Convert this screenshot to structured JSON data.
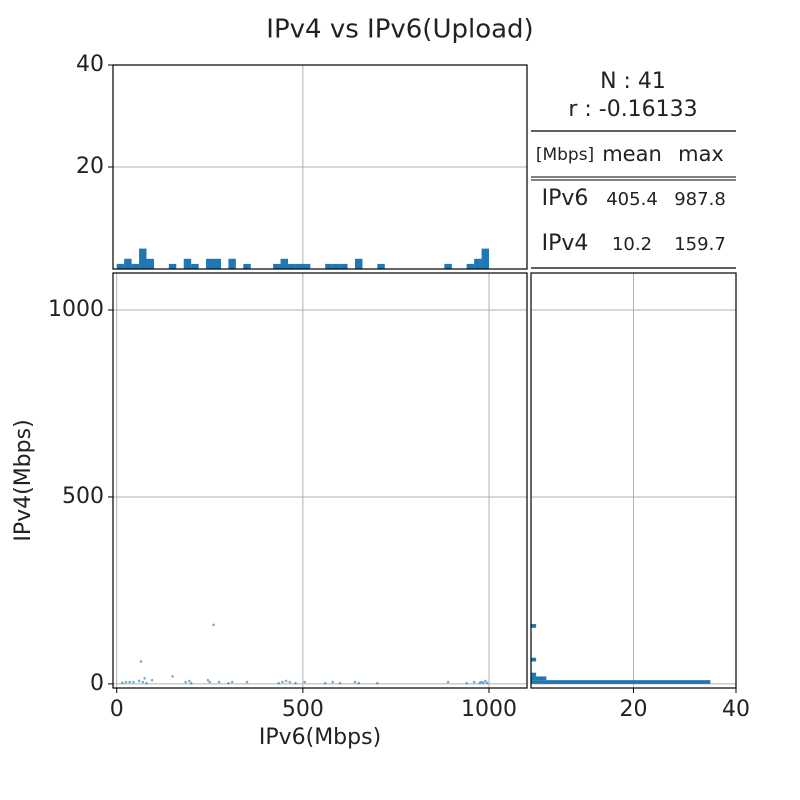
{
  "title": "IPv4 vs IPv6(Upload)",
  "stats": {
    "n": "N : 41",
    "r": "r : -0.16133",
    "header": [
      "[Mbps]",
      "mean",
      "max"
    ],
    "rows": [
      [
        "IPv6",
        405.4,
        987.8
      ],
      [
        "IPv4",
        10.2,
        159.7
      ]
    ]
  },
  "chart_data": [
    {
      "type": "scatter",
      "x_label": "IPv6(Mbps)",
      "y_label": "IPv4(Mbps)",
      "color": "#1f77b4",
      "grid": true,
      "x": [
        15,
        25,
        35,
        45,
        60,
        65,
        70,
        75,
        80,
        95,
        150,
        185,
        195,
        200,
        245,
        250,
        260,
        275,
        300,
        310,
        350,
        435,
        445,
        455,
        465,
        480,
        505,
        560,
        580,
        600,
        640,
        650,
        700,
        890,
        940,
        960,
        975,
        985,
        990,
        995,
        980
      ],
      "y": [
        3,
        5,
        5,
        5,
        8,
        60,
        5,
        15,
        2,
        10,
        20,
        5,
        8,
        2,
        10,
        5,
        158,
        5,
        2,
        5,
        5,
        2,
        5,
        8,
        5,
        2,
        5,
        2,
        5,
        2,
        5,
        2,
        2,
        5,
        2,
        5,
        3,
        3,
        8,
        3,
        5
      ],
      "xlim": [
        -10,
        1102
      ],
      "xticks": [
        0,
        500,
        1000
      ],
      "ylim": [
        -11,
        1099
      ],
      "yticks": [
        0,
        500,
        1000
      ]
    },
    {
      "type": "histogram",
      "orientation": "vertical",
      "color": "#1f77b4",
      "grid": true,
      "bins": [
        0,
        20,
        40,
        60,
        80,
        100,
        120,
        140,
        160,
        180,
        200,
        220,
        240,
        260,
        280,
        300,
        320,
        340,
        360,
        380,
        400,
        420,
        440,
        460,
        480,
        500,
        520,
        540,
        560,
        580,
        600,
        620,
        640,
        660,
        680,
        700,
        720,
        740,
        760,
        780,
        800,
        820,
        840,
        860,
        880,
        900,
        920,
        940,
        960,
        980,
        1000
      ],
      "counts": [
        1,
        2,
        1,
        4,
        2,
        0,
        0,
        1,
        0,
        2,
        1,
        0,
        2,
        2,
        0,
        2,
        0,
        1,
        0,
        0,
        0,
        1,
        2,
        1,
        1,
        1,
        0,
        0,
        1,
        1,
        1,
        0,
        2,
        0,
        0,
        1,
        0,
        0,
        0,
        0,
        0,
        0,
        0,
        0,
        1,
        0,
        0,
        1,
        2,
        4
      ],
      "xlim": [
        -10,
        1102
      ],
      "xticks": [
        500
      ],
      "ylim": [
        0,
        40
      ],
      "yticks": [
        20,
        40
      ]
    },
    {
      "type": "histogram",
      "orientation": "horizontal",
      "color": "#1f77b4",
      "grid": true,
      "bins": [
        0,
        10,
        20,
        30,
        40,
        50,
        60,
        70,
        80,
        90,
        100,
        110,
        120,
        130,
        140,
        150,
        160
      ],
      "counts": [
        35,
        3,
        1,
        0,
        0,
        0,
        1,
        0,
        0,
        0,
        0,
        0,
        0,
        0,
        0,
        1
      ],
      "xlim": [
        0,
        40
      ],
      "xticks": [
        20,
        40
      ],
      "ylim": [
        -11,
        1099
      ],
      "yticks": [
        0,
        500,
        1000
      ]
    }
  ]
}
